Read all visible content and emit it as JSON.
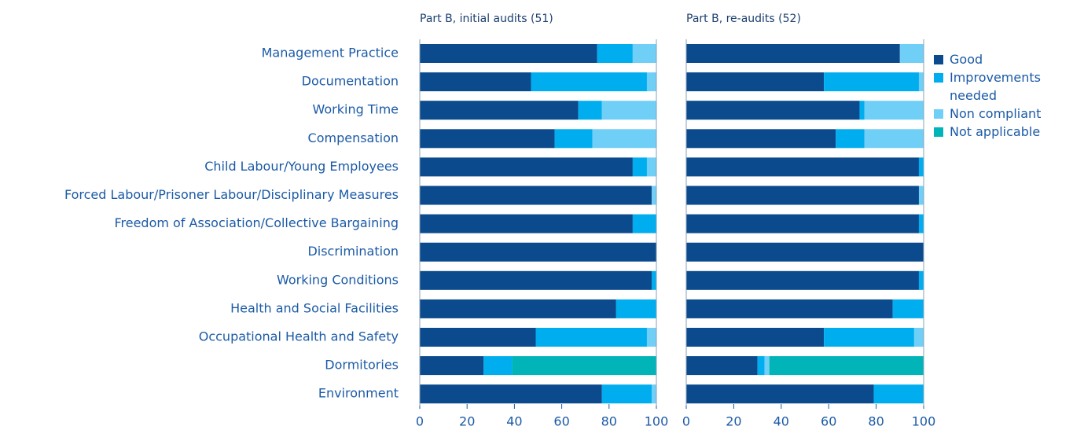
{
  "chart_data": [
    {
      "type": "stacked-bar-horizontal",
      "title": "Part B, initial audits (51)",
      "categories": [
        "Management Practice",
        "Documentation",
        "Working Time",
        "Compensation",
        "Child Labour/Young Employees",
        "Forced Labour/Prisoner Labour/Disciplinary Measures",
        "Freedom of Association/Collective Bargaining",
        "Discrimination",
        "Working Conditions",
        "Health and Social Facilities",
        "Occupational Health and Safety",
        "Dormitories",
        "Environment"
      ],
      "series": [
        {
          "name": "Good",
          "color": "#0b4a8d",
          "values": [
            75,
            47,
            67,
            57,
            90,
            98,
            90,
            100,
            98,
            83,
            49,
            27,
            77
          ]
        },
        {
          "name": "Improvements needed",
          "color": "#00aeef",
          "values": [
            15,
            49,
            10,
            16,
            6,
            0,
            10,
            0,
            2,
            17,
            47,
            12,
            21
          ]
        },
        {
          "name": "Non compliant",
          "color": "#6fcff6",
          "values": [
            10,
            4,
            23,
            27,
            4,
            2,
            0,
            0,
            0,
            0,
            4,
            0,
            2
          ]
        },
        {
          "name": "Not applicable",
          "color": "#00b4b8",
          "values": [
            0,
            0,
            0,
            0,
            0,
            0,
            0,
            0,
            0,
            0,
            0,
            61,
            0
          ]
        }
      ],
      "xlim": [
        0,
        100
      ],
      "xticks": [
        0,
        20,
        40,
        60,
        80,
        100
      ]
    },
    {
      "type": "stacked-bar-horizontal",
      "title": "Part B, re-audits (52)",
      "series": [
        {
          "color": "#0b4a8d",
          "values": [
            90,
            58,
            73,
            63,
            98,
            98,
            98,
            100,
            98,
            87,
            58,
            30,
            79
          ]
        },
        {
          "color": "#00aeef",
          "values": [
            0,
            40,
            2,
            12,
            2,
            0,
            2,
            0,
            2,
            13,
            38,
            3,
            21
          ]
        },
        {
          "color": "#6fcff6",
          "values": [
            10,
            2,
            25,
            25,
            0,
            2,
            0,
            0,
            0,
            0,
            4,
            2,
            0
          ]
        },
        {
          "color": "#00b4b8",
          "values": [
            0,
            0,
            0,
            0,
            0,
            0,
            0,
            0,
            0,
            0,
            0,
            65,
            0
          ]
        }
      ],
      "xlim": [
        0,
        100
      ],
      "xticks": [
        0,
        20,
        40,
        60,
        80,
        100
      ]
    }
  ]
}
